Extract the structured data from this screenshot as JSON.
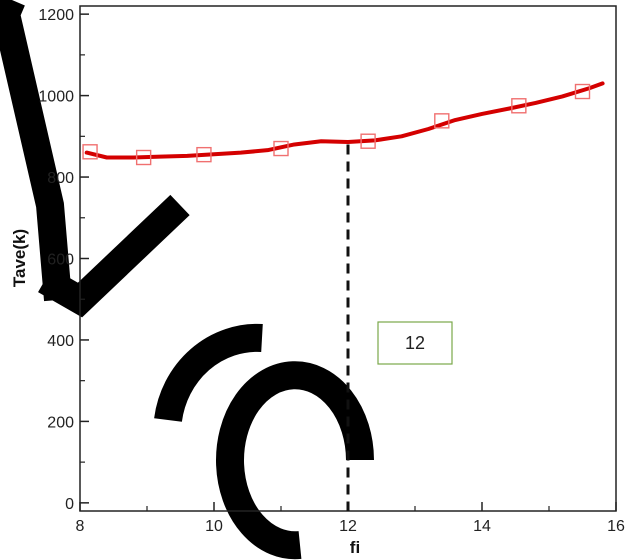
{
  "chart_data": {
    "type": "line",
    "xlabel": "fi",
    "ylabel": "Tave(k)",
    "xlim": [
      8,
      16
    ],
    "ylim": [
      -20,
      1220
    ],
    "xticks": [
      "8",
      "10",
      "12",
      "14",
      "16"
    ],
    "yticks": [
      "0",
      "200",
      "400",
      "600",
      "800",
      "1000",
      "1200"
    ],
    "grid": false,
    "line_color": "#d40000",
    "marker_color": "#f07070",
    "series": [
      {
        "line": {
          "x": [
            8.1,
            8.4,
            8.8,
            9.2,
            9.6,
            10.0,
            10.4,
            10.8,
            11.2,
            11.6,
            12.0,
            12.4,
            12.8,
            13.2,
            13.6,
            14.0,
            14.4,
            14.8,
            15.2,
            15.6,
            15.8
          ],
          "y": [
            860,
            848,
            848,
            850,
            852,
            856,
            860,
            866,
            880,
            888,
            886,
            890,
            900,
            918,
            940,
            955,
            968,
            982,
            998,
            1018,
            1030
          ]
        },
        "markers": {
          "x": [
            8.15,
            8.95,
            9.85,
            11.0,
            12.3,
            13.4,
            14.55,
            15.5
          ],
          "y": [
            862,
            848,
            855,
            870,
            888,
            938,
            975,
            1010
          ]
        }
      }
    ],
    "reference_line": {
      "x": 12,
      "from_y": 880,
      "to_y": -20,
      "style": "dashed"
    },
    "annotation": {
      "text": "12",
      "border_color": "#7aa84a"
    }
  }
}
